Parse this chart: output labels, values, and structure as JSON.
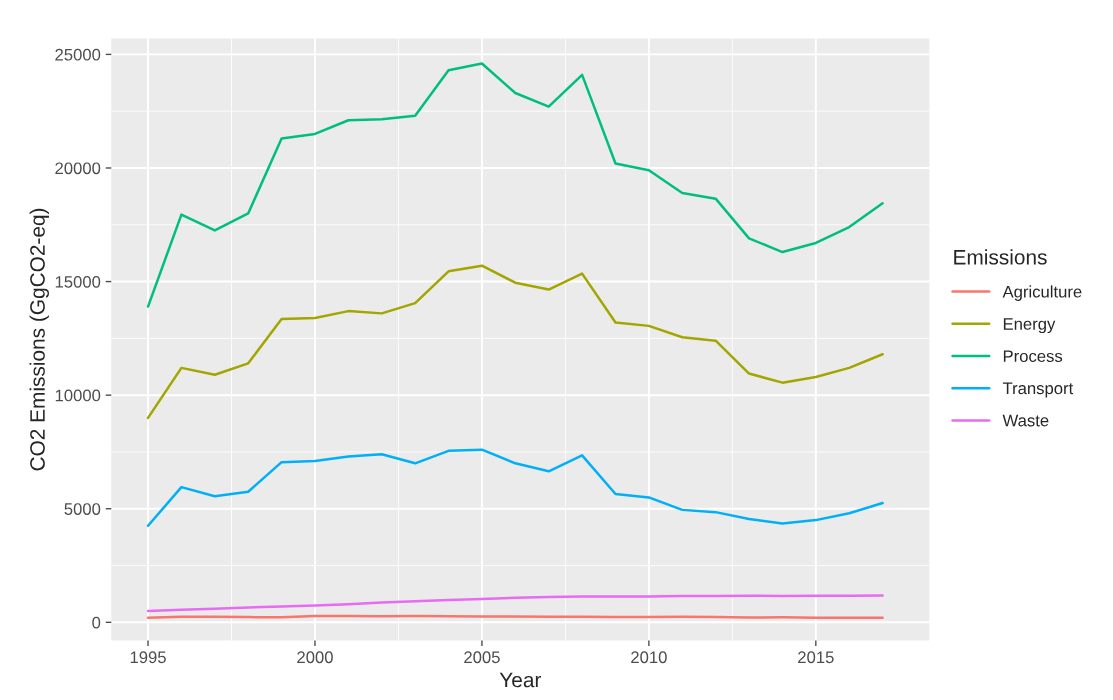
{
  "chart_data": {
    "type": "line",
    "xlabel": "Year",
    "ylabel": "CO2 Emissions (GgCO2-eq)",
    "legend_title": "Emissions",
    "legend": "right",
    "grid": true,
    "x": [
      1995,
      1996,
      1997,
      1998,
      1999,
      2000,
      2001,
      2002,
      2003,
      2004,
      2005,
      2006,
      2007,
      2008,
      2009,
      2010,
      2011,
      2012,
      2013,
      2014,
      2015,
      2016,
      2017
    ],
    "xlim": [
      1993.9,
      2018.4
    ],
    "xticks": [
      1995,
      2000,
      2005,
      2010,
      2015
    ],
    "ylim": [
      -800,
      25700
    ],
    "yticks": [
      0,
      5000,
      10000,
      15000,
      20000,
      25000
    ],
    "series": [
      {
        "name": "Agriculture",
        "color": "#f8766d",
        "values": [
          200,
          250,
          240,
          230,
          220,
          280,
          280,
          270,
          280,
          270,
          260,
          260,
          250,
          240,
          230,
          230,
          240,
          230,
          210,
          220,
          200,
          200,
          200
        ]
      },
      {
        "name": "Energy",
        "color": "#a3a500",
        "values": [
          9000,
          11200,
          10900,
          11400,
          13350,
          13400,
          13700,
          13600,
          14050,
          15450,
          15700,
          14950,
          14650,
          15350,
          13200,
          13050,
          12550,
          12400,
          10950,
          10550,
          10800,
          11200,
          11800
        ]
      },
      {
        "name": "Process",
        "color": "#00bf7d",
        "values": [
          13900,
          17950,
          17250,
          18000,
          21300,
          21500,
          22100,
          22150,
          22300,
          24300,
          24600,
          23300,
          22700,
          24100,
          20200,
          19900,
          18900,
          18650,
          16900,
          16300,
          16700,
          17400,
          18450
        ]
      },
      {
        "name": "Transport",
        "color": "#00b0f6",
        "values": [
          4250,
          5950,
          5550,
          5750,
          7050,
          7100,
          7300,
          7400,
          7000,
          7550,
          7600,
          7000,
          6650,
          7350,
          5650,
          5500,
          4950,
          4850,
          4550,
          4350,
          4500,
          4800,
          5250
        ]
      },
      {
        "name": "Waste",
        "color": "#e76bf3",
        "values": [
          500,
          550,
          600,
          650,
          700,
          740,
          800,
          870,
          930,
          980,
          1030,
          1080,
          1120,
          1140,
          1140,
          1140,
          1160,
          1160,
          1170,
          1160,
          1170,
          1170,
          1180
        ]
      }
    ]
  }
}
